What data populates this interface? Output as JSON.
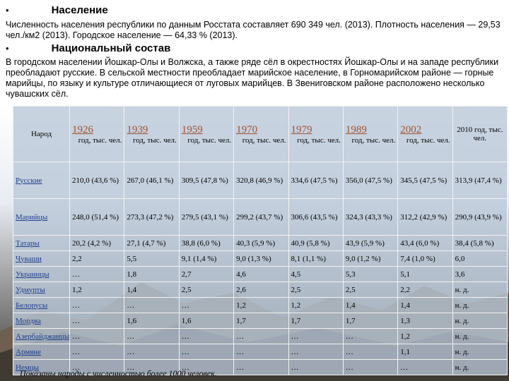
{
  "bullets": [
    {
      "heading": "Население",
      "text": "Численность населения республики по данным Росстата составляет 690 349 чел. (2013). Плотность населения — 29,53 чел./км2 (2013). Городское население — 64,33 % (2013)."
    },
    {
      "heading": "Национальный состав",
      "text": "В городском населении Йошкар-Олы и Волжска, а также ряде сёл в окрестностях Йошкар-Олы и на западе республики преобладают русские. В сельской местности преобладает марийское население, в Горномарийском районе — горные марийцы, по языку и культуре отличающиеся от луговых марийцев. В Звениговском районе расположено несколько чувашских сёл."
    }
  ],
  "table": {
    "corner": "Народ",
    "columns": [
      {
        "year": "1926",
        "unit": "год, тыс. чел."
      },
      {
        "year": "1939",
        "unit": "год, тыс. чел."
      },
      {
        "year": "1959",
        "unit": "год, тыс. чел."
      },
      {
        "year": "1970",
        "unit": "год, тыс. чел."
      },
      {
        "year": "1979",
        "unit": "год, тыс. чел."
      },
      {
        "year": "1989",
        "unit": "год, тыс. чел."
      },
      {
        "year": "2002",
        "unit": "год, тыс. чел."
      },
      {
        "text": "2010 год, тыс. чел."
      }
    ],
    "rows": [
      [
        "Русские",
        "210,0 (43,6 %)",
        "267,0 (46,1 %)",
        "309,5 (47,8 %)",
        "320,8 (46,9 %)",
        "334,6 (47,5 %)",
        "356,0 (47,5 %)",
        "345,5 (47,5 %)",
        "313,9 (47,4 %)"
      ],
      [
        "Марийцы",
        "248,0 (51,4 %)",
        "273,3 (47,2 %)",
        "279,5 (43,1 %)",
        "299,2 (43,7 %)",
        "306,6 (43,5 %)",
        "324,3 (43,3 %)",
        "312,2 (42,9 %)",
        "290,9 (43,9 %)"
      ],
      [
        "Татары",
        "20,2 (4,2 %)",
        "27,1 (4,7 %)",
        "38,8 (6,0 %)",
        "40,3 (5,9 %)",
        "40,9 (5,8 %)",
        "43,9 (5,9 %)",
        "43,4 (6,0 %)",
        "38,4 (5,8 %)"
      ],
      [
        "Чуваши",
        "2,2",
        "5,5",
        "9,1 (1,4 %)",
        "9,0 (1,3 %)",
        "8,1 (1,1 %)",
        "9,0 (1,2 %)",
        "7,4 (1,0 %)",
        "6,0"
      ],
      [
        "Украинцы",
        "…",
        "1,8",
        "2,7",
        "4,6",
        "4,5",
        "5,3",
        "5,1",
        "3,6"
      ],
      [
        "Удмурты",
        "1,2",
        "1,4",
        "2,5",
        "2,6",
        "2,5",
        "2,5",
        "2,2",
        "н. д."
      ],
      [
        "Белорусы",
        "…",
        "…",
        "…",
        "1,2",
        "1,2",
        "1,4",
        "1,4",
        "н. д."
      ],
      [
        "Мордва",
        "…",
        "1,6",
        "1,6",
        "1,7",
        "1,7",
        "1,7",
        "1,3",
        "н. д."
      ],
      [
        "Азербайджанцы",
        "…",
        "…",
        "…",
        "…",
        "…",
        "…",
        "1,2",
        "н. д."
      ],
      [
        "Армяне",
        "…",
        "…",
        "…",
        "…",
        "…",
        "…",
        "1,1",
        "н. д."
      ],
      [
        "Немцы",
        "…",
        "…",
        "…",
        "…",
        "…",
        "…",
        "…",
        "н. д."
      ]
    ],
    "footnote": "Показаны народы с численностью более 1000 человек."
  }
}
